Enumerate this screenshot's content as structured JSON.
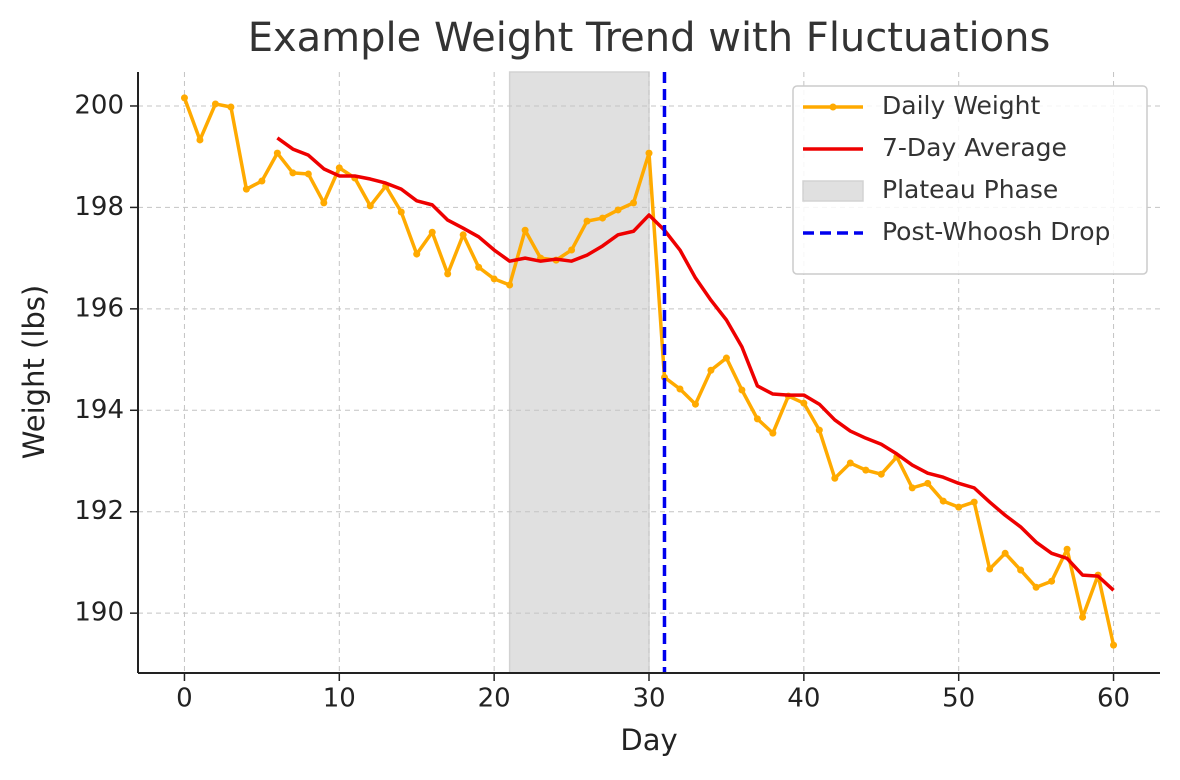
{
  "chart_data": {
    "type": "line",
    "title": "Example Weight Trend with Fluctuations",
    "x_label": "Day",
    "y_label": "Weight (lbs)",
    "x": [
      0,
      1,
      2,
      3,
      4,
      5,
      6,
      7,
      8,
      9,
      10,
      11,
      12,
      13,
      14,
      15,
      16,
      17,
      18,
      19,
      20,
      21,
      22,
      23,
      24,
      25,
      26,
      27,
      28,
      29,
      30,
      31,
      32,
      33,
      34,
      35,
      36,
      37,
      38,
      39,
      40,
      41,
      42,
      43,
      44,
      45,
      46,
      47,
      48,
      49,
      50,
      51,
      52,
      53,
      54,
      55,
      56,
      57,
      58,
      59,
      60
    ],
    "series": [
      {
        "name": "Daily Weight",
        "color": "#ffaa00",
        "marker": true,
        "values": [
          200.16,
          199.33,
          200.04,
          199.98,
          198.36,
          198.52,
          199.07,
          198.68,
          198.66,
          198.09,
          198.78,
          198.58,
          198.03,
          198.42,
          197.91,
          197.08,
          197.51,
          196.69,
          197.46,
          196.82,
          196.59,
          196.47,
          197.55,
          197.0,
          196.96,
          197.16,
          197.73,
          197.79,
          197.95,
          198.09,
          199.07,
          194.65,
          194.42,
          194.12,
          194.79,
          195.03,
          194.4,
          193.83,
          193.55,
          194.28,
          194.14,
          193.61,
          192.66,
          192.96,
          192.82,
          192.74,
          193.08,
          192.47,
          192.56,
          192.21,
          192.09,
          192.19,
          190.87,
          191.18,
          190.85,
          190.51,
          190.63,
          191.26,
          189.92,
          190.75,
          189.37
        ]
      },
      {
        "name": "7-Day Average",
        "color": "#ee0000",
        "marker": false,
        "values": [
          null,
          null,
          null,
          null,
          null,
          null,
          199.37,
          199.15,
          199.03,
          198.76,
          198.62,
          198.62,
          198.56,
          198.48,
          198.36,
          198.13,
          198.05,
          197.75,
          197.59,
          197.42,
          197.16,
          196.94,
          197.0,
          196.94,
          196.98,
          196.94,
          197.06,
          197.24,
          197.46,
          197.53,
          197.85,
          197.55,
          197.16,
          196.61,
          196.17,
          195.78,
          195.25,
          194.48,
          194.32,
          194.3,
          194.3,
          194.12,
          193.81,
          193.59,
          193.45,
          193.33,
          193.14,
          192.92,
          192.76,
          192.68,
          192.56,
          192.47,
          192.19,
          191.93,
          191.7,
          191.4,
          191.18,
          191.08,
          190.75,
          190.73,
          190.45
        ]
      }
    ],
    "spans": [
      {
        "name": "Plateau Phase",
        "start": 21,
        "end": 30,
        "color": "#d9d9d9"
      }
    ],
    "vlines": [
      {
        "name": "Post-Whoosh Drop",
        "x": 31,
        "color": "#0000ee"
      }
    ],
    "xlim": [
      -3,
      63
    ],
    "ylim": [
      188.82,
      200.67
    ],
    "xticks": [
      0,
      10,
      20,
      30,
      40,
      50,
      60
    ],
    "yticks": [
      190,
      192,
      194,
      196,
      198,
      200
    ],
    "grid": true,
    "legend": "upper right"
  }
}
